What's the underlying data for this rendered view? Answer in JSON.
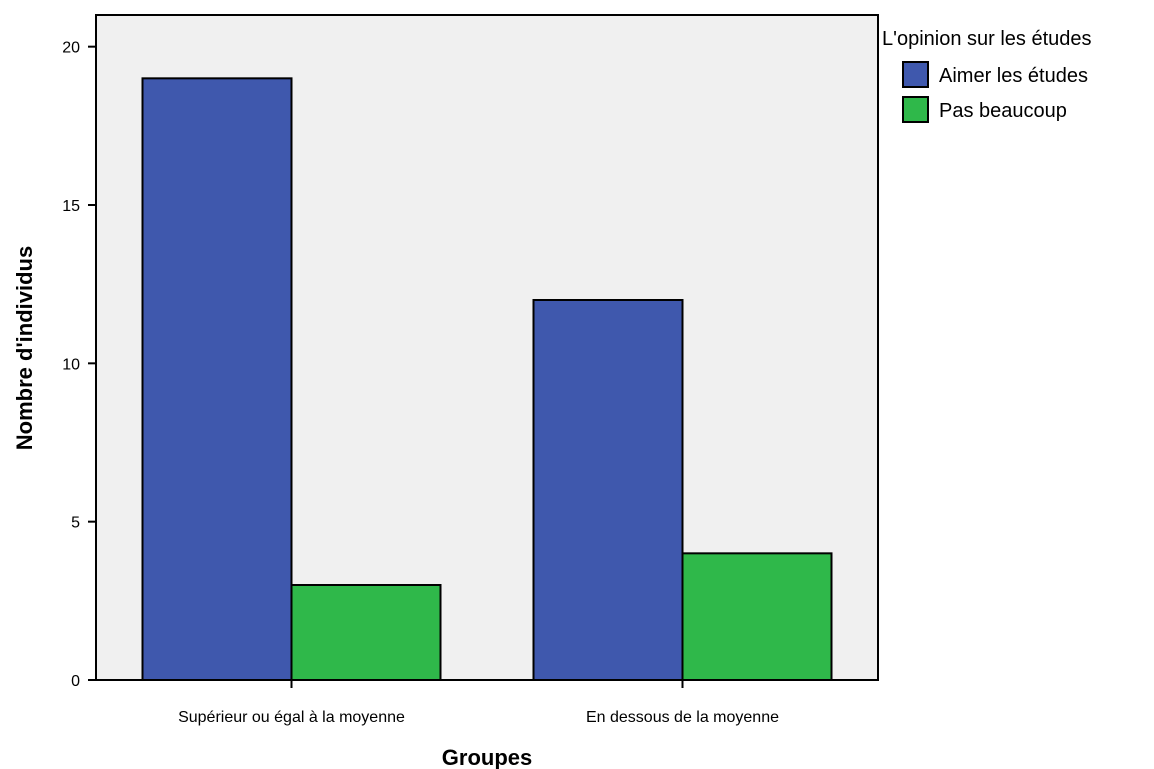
{
  "chart_data": {
    "type": "bar",
    "categories": [
      "Supérieur ou égal à la moyenne",
      "En dessous de la moyenne"
    ],
    "series": [
      {
        "name": "Aimer les études",
        "values": [
          19,
          12
        ],
        "color": "#3f58ad"
      },
      {
        "name": "Pas beaucoup",
        "values": [
          3,
          4
        ],
        "color": "#2fb84a"
      }
    ],
    "xlabel": "Groupes",
    "ylabel": "Nombre d'individus",
    "ylim": [
      0,
      21
    ],
    "yticks": [
      0,
      5,
      10,
      15,
      20
    ],
    "legend_title": "L'opinion sur les études",
    "legend_position": "right",
    "grid": false,
    "plot_background": "#f0f0f0"
  }
}
